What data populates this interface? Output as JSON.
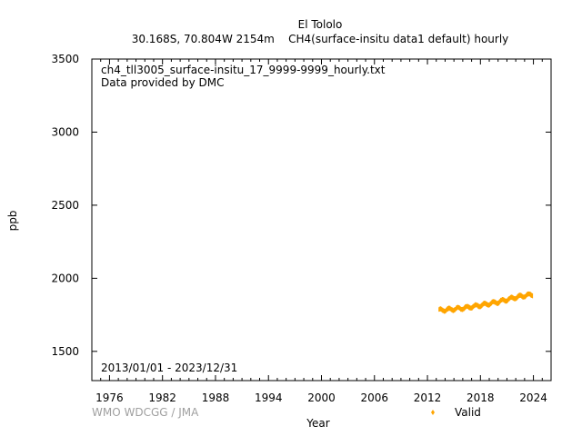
{
  "header": {
    "title": "El Tololo",
    "subtitle": "30.168S, 70.804W 2154m    CH4(surface-insitu data1 default) hourly"
  },
  "annotations": {
    "filename": "ch4_tll3005_surface-insitu_17_9999-9999_hourly.txt",
    "provider": "Data provided by DMC",
    "period": "2013/01/01 - 2023/12/31"
  },
  "credit": "WMO WDCGG / JMA",
  "legend": {
    "label": "Valid",
    "color": "#ffa500"
  },
  "chart_data": {
    "type": "line",
    "xlabel": "Year",
    "ylabel": "ppb",
    "xlim": [
      1974,
      2026
    ],
    "ylim": [
      1300,
      3500
    ],
    "x_ticks": [
      1976,
      1982,
      1988,
      1994,
      2000,
      2006,
      2012,
      2018,
      2024
    ],
    "y_ticks": [
      1500,
      2000,
      2500,
      3000,
      3500
    ],
    "grid": false,
    "legend_position": "bottom",
    "series": [
      {
        "name": "Valid",
        "color": "#ffa500",
        "x_start": 2013.3,
        "x_end": 2023.9,
        "trend": [
          [
            2013.3,
            1780
          ],
          [
            2016,
            1795
          ],
          [
            2018,
            1815
          ],
          [
            2020,
            1838
          ],
          [
            2022,
            1870
          ],
          [
            2023.9,
            1890
          ]
        ],
        "band_halfwidth": 18
      }
    ]
  }
}
